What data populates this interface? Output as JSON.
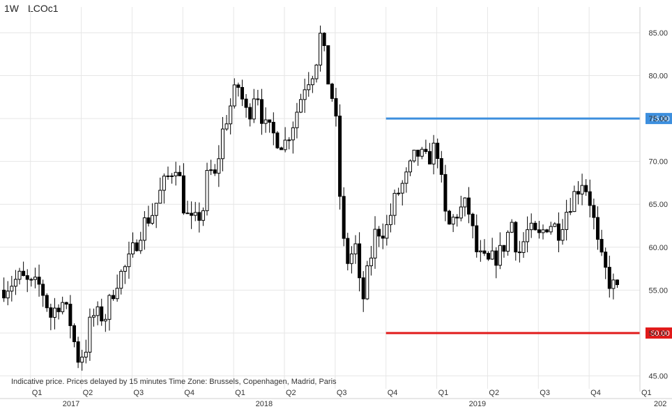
{
  "header": {
    "interval": "1W",
    "symbol": "LCOc1"
  },
  "footer_note": "Indicative price. Prices delayed by 15 minutes    Time Zone: Brussels, Copenhagen, Madrid, Paris",
  "colors": {
    "grid": "#e6e6e6",
    "candle": "#000000",
    "resistance": "#3d8fde",
    "support": "#e11a1a",
    "axis_text": "#333333"
  },
  "chart_data": {
    "type": "candlestick",
    "title": "",
    "xlabel": "",
    "ylabel": "",
    "ylim": [
      43.5,
      88
    ],
    "x_range": [
      2016.85,
      2020.0
    ],
    "y_ticks": [
      "45.00",
      "50.00",
      "55.00",
      "60.00",
      "65.00",
      "70.00",
      "75.00",
      "80.00",
      "85.00"
    ],
    "quarter_labels": [
      {
        "label": "Q1",
        "x": 2017.0
      },
      {
        "label": "Q2",
        "x": 2017.25
      },
      {
        "label": "Q3",
        "x": 2017.5
      },
      {
        "label": "Q4",
        "x": 2017.75
      },
      {
        "label": "Q1",
        "x": 2018.0
      },
      {
        "label": "Q2",
        "x": 2018.25
      },
      {
        "label": "Q3",
        "x": 2018.5
      },
      {
        "label": "Q4",
        "x": 2018.75
      },
      {
        "label": "Q1",
        "x": 2019.0
      },
      {
        "label": "Q2",
        "x": 2019.25
      },
      {
        "label": "Q3",
        "x": 2019.5
      },
      {
        "label": "Q4",
        "x": 2019.75
      },
      {
        "label": "Q1",
        "x": 2020.0
      }
    ],
    "year_labels": [
      {
        "label": "2017",
        "x": 2017.2
      },
      {
        "label": "2018",
        "x": 2018.15
      },
      {
        "label": "2019",
        "x": 2019.2
      },
      {
        "label": "202",
        "x": 2020.1
      }
    ],
    "horizontal_lines": [
      {
        "value": 75.0,
        "label": "75.00",
        "color": "#3d8fde",
        "x_start": 2018.75
      },
      {
        "value": 50.0,
        "label": "50.00",
        "color": "#e11a1a",
        "x_start": 2018.75
      }
    ],
    "anchors": [
      [
        2016.85,
        55.0
      ],
      [
        2016.95,
        56.5
      ],
      [
        2017.0,
        55.5
      ],
      [
        2017.05,
        55.5
      ],
      [
        2017.1,
        52.0
      ],
      [
        2017.15,
        54.0
      ],
      [
        2017.2,
        51.0
      ],
      [
        2017.23,
        47.0
      ],
      [
        2017.27,
        48.0
      ],
      [
        2017.3,
        52.0
      ],
      [
        2017.33,
        52.0
      ],
      [
        2017.37,
        52.0
      ],
      [
        2017.42,
        56.0
      ],
      [
        2017.48,
        58.0
      ],
      [
        2017.55,
        62.5
      ],
      [
        2017.6,
        64.0
      ],
      [
        2017.65,
        67.0
      ],
      [
        2017.72,
        70.0
      ],
      [
        2017.76,
        64.0
      ],
      [
        2017.8,
        62.5
      ],
      [
        2017.85,
        64.5
      ],
      [
        2017.88,
        70.0
      ],
      [
        2017.9,
        67.0
      ],
      [
        2017.95,
        74.0
      ],
      [
        2018.02,
        79.0
      ],
      [
        2018.07,
        75.0
      ],
      [
        2018.11,
        79.0
      ],
      [
        2018.15,
        74.0
      ],
      [
        2018.2,
        73.0
      ],
      [
        2018.25,
        72.0
      ],
      [
        2018.3,
        75.0
      ],
      [
        2018.35,
        79.0
      ],
      [
        2018.4,
        81.0
      ],
      [
        2018.43,
        85.0
      ],
      [
        2018.46,
        80.0
      ],
      [
        2018.5,
        76.0
      ],
      [
        2018.52,
        67.0
      ],
      [
        2018.55,
        58.0
      ],
      [
        2018.6,
        60.0
      ],
      [
        2018.63,
        53.0
      ],
      [
        2018.66,
        57.0
      ],
      [
        2018.7,
        62.0
      ],
      [
        2018.75,
        62.0
      ],
      [
        2018.8,
        66.0
      ],
      [
        2018.85,
        68.0
      ],
      [
        2018.9,
        71.0
      ],
      [
        2018.95,
        70.0
      ],
      [
        2019.0,
        72.0
      ],
      [
        2019.05,
        62.0
      ],
      [
        2019.1,
        64.0
      ],
      [
        2019.15,
        65.0
      ],
      [
        2019.2,
        59.0
      ],
      [
        2019.25,
        58.0
      ],
      [
        2019.32,
        59.5
      ],
      [
        2019.37,
        63.0
      ],
      [
        2019.4,
        59.0
      ],
      [
        2019.45,
        62.0
      ],
      [
        2019.5,
        61.0
      ],
      [
        2019.55,
        63.0
      ],
      [
        2019.6,
        62.0
      ],
      [
        2019.65,
        65.0
      ],
      [
        2019.72,
        68.0
      ],
      [
        2019.76,
        65.0
      ],
      [
        2019.8,
        59.0
      ],
      [
        2019.85,
        56.0
      ],
      [
        2019.9,
        54.5
      ]
    ],
    "series": [
      {
        "name": "LCOc1",
        "kind": "weekly OHLC",
        "generator": "anchors"
      }
    ]
  }
}
